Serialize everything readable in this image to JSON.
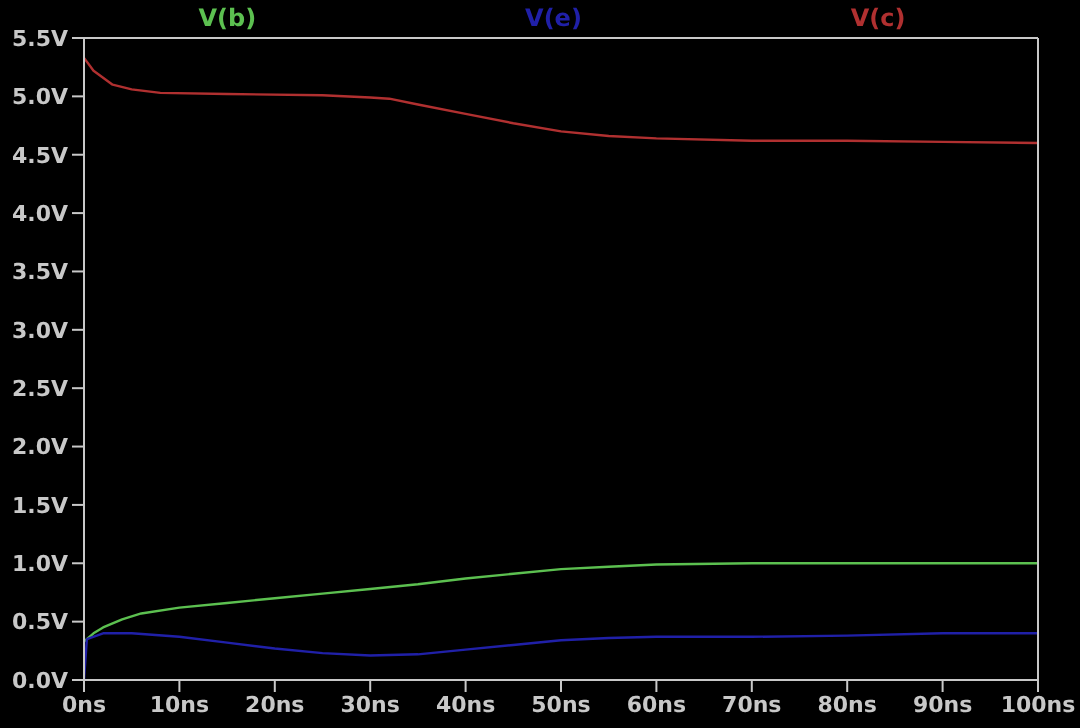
{
  "chart_data": {
    "type": "line",
    "legend": "top",
    "marker": "none",
    "line_style": "solid",
    "xlim": [
      0,
      100
    ],
    "xticks": [
      {
        "value": 0,
        "label": "0ns"
      },
      {
        "value": 10,
        "label": "10ns"
      },
      {
        "value": 20,
        "label": "20ns"
      },
      {
        "value": 30,
        "label": "30ns"
      },
      {
        "value": 40,
        "label": "40ns"
      },
      {
        "value": 50,
        "label": "50ns"
      },
      {
        "value": 60,
        "label": "60ns"
      },
      {
        "value": 70,
        "label": "70ns"
      },
      {
        "value": 80,
        "label": "80ns"
      },
      {
        "value": 90,
        "label": "90ns"
      },
      {
        "value": 100,
        "label": "100ns"
      }
    ],
    "ylim": [
      0,
      5.5
    ],
    "yticks": [
      {
        "value": 0,
        "label": "0.0V"
      },
      {
        "value": 0.5,
        "label": "0.5V"
      },
      {
        "value": 1,
        "label": "1.0V"
      },
      {
        "value": 1.5,
        "label": "1.5V"
      },
      {
        "value": 2,
        "label": "2.0V"
      },
      {
        "value": 2.5,
        "label": "2.5V"
      },
      {
        "value": 3,
        "label": "3.0V"
      },
      {
        "value": 3.5,
        "label": "3.5V"
      },
      {
        "value": 4,
        "label": "4.0V"
      },
      {
        "value": 4.5,
        "label": "4.5V"
      },
      {
        "value": 5,
        "label": "5.0V"
      },
      {
        "value": 5.5,
        "label": "5.5V"
      }
    ],
    "series": [
      {
        "name": "V(b)",
        "color": "#5cc050",
        "x": [
          0,
          1,
          2,
          4,
          6,
          10,
          15,
          20,
          25,
          30,
          35,
          40,
          45,
          50,
          55,
          60,
          70,
          80,
          90,
          100
        ],
        "values": [
          0.33,
          0.4,
          0.45,
          0.52,
          0.57,
          0.62,
          0.66,
          0.7,
          0.74,
          0.78,
          0.82,
          0.87,
          0.91,
          0.95,
          0.97,
          0.99,
          1.0,
          1.0,
          1.0,
          1.0
        ]
      },
      {
        "name": "V(e)",
        "color": "#2020a8",
        "x": [
          0,
          0.3,
          2,
          5,
          10,
          15,
          20,
          25,
          30,
          35,
          40,
          45,
          50,
          55,
          60,
          70,
          80,
          90,
          100
        ],
        "values": [
          0,
          0.35,
          0.4,
          0.4,
          0.37,
          0.32,
          0.27,
          0.23,
          0.21,
          0.22,
          0.26,
          0.3,
          0.34,
          0.36,
          0.37,
          0.37,
          0.38,
          0.4,
          0.4
        ]
      },
      {
        "name": "V(c)",
        "color": "#b03030",
        "x": [
          0,
          1,
          3,
          5,
          8,
          15,
          25,
          30,
          32,
          35,
          40,
          45,
          50,
          55,
          60,
          70,
          80,
          90,
          100
        ],
        "values": [
          5.33,
          5.22,
          5.1,
          5.06,
          5.03,
          5.02,
          5.01,
          4.99,
          4.98,
          4.93,
          4.85,
          4.77,
          4.7,
          4.66,
          4.64,
          4.62,
          4.62,
          4.61,
          4.6
        ]
      }
    ]
  }
}
